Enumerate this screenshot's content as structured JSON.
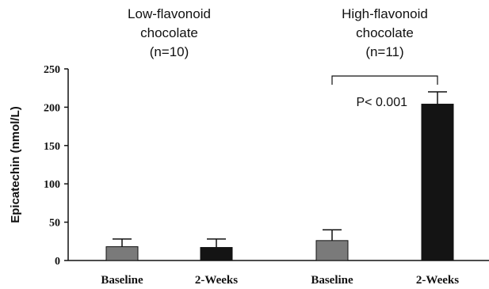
{
  "chart_data": {
    "type": "bar",
    "title": "",
    "xlabel": "",
    "ylabel": "Epicatechin (nmol/L)",
    "ylim": [
      0,
      250
    ],
    "yticks": [
      0,
      50,
      100,
      150,
      200,
      250
    ],
    "grid": false,
    "legend": "none",
    "categories": [
      "Baseline",
      "2-Weeks",
      "Baseline",
      "2-Weeks"
    ],
    "values": [
      18,
      17,
      26,
      204
    ],
    "error": [
      10,
      11,
      14,
      16
    ],
    "bar_colors": [
      "#7a7a7a",
      "#141414",
      "#7a7a7a",
      "#141414"
    ],
    "groups": [
      {
        "lines": [
          "Low-flavonoid",
          "chocolate",
          "(n=10)"
        ],
        "categories": [
          0,
          1
        ]
      },
      {
        "lines": [
          "High-flavonoid",
          "chocolate",
          "(n=11)"
        ],
        "categories": [
          2,
          3
        ]
      }
    ],
    "annotations": [
      {
        "text": "P< 0.001",
        "between": [
          2,
          3
        ]
      }
    ]
  }
}
